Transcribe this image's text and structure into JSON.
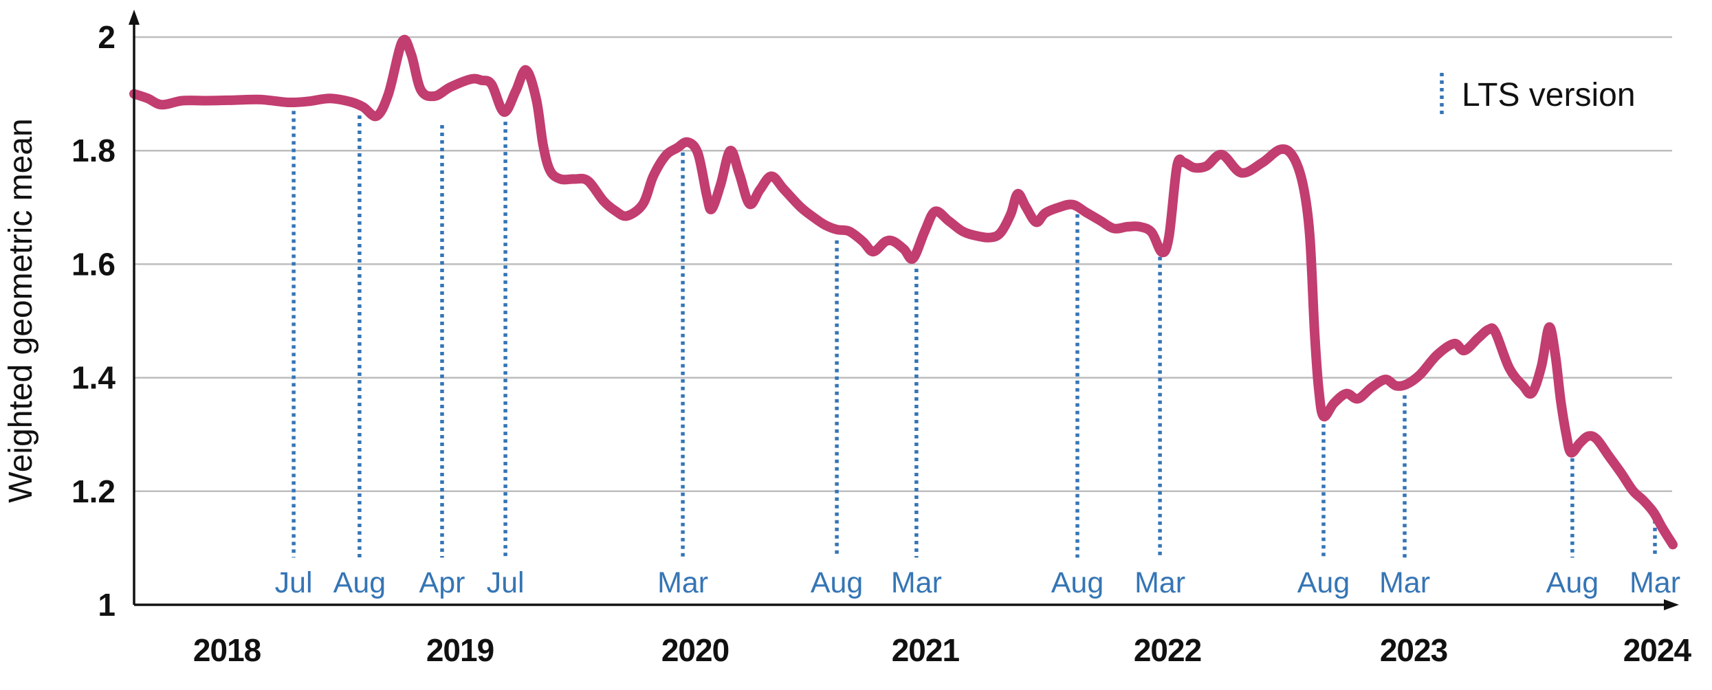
{
  "colors": {
    "series_line": "#c23d70",
    "lts_marker": "#3575b5",
    "gridline": "#bdbdbd",
    "axis": "#111111",
    "background": "#ffffff"
  },
  "chart_data": {
    "type": "line",
    "title": "",
    "xlabel": "",
    "ylabel": "Weighted geometric mean",
    "grid": "horizontal-only",
    "legend_position": "top-right",
    "y_axis": {
      "range": [
        1,
        2
      ],
      "ticks": [
        {
          "label": "1",
          "value": 1.0
        },
        {
          "label": "1.2",
          "value": 1.2
        },
        {
          "label": "1.4",
          "value": 1.4
        },
        {
          "label": "1.6",
          "value": 1.6
        },
        {
          "label": "1.8",
          "value": 1.8
        },
        {
          "label": "2",
          "value": 2.0
        }
      ],
      "gridline_values": [
        1.2,
        1.4,
        1.6,
        1.8,
        2.0
      ]
    },
    "x_axis": {
      "kind": "time",
      "year_ticks": [
        {
          "label": "2018",
          "f": 0.0603
        },
        {
          "label": "2019",
          "f": 0.2116
        },
        {
          "label": "2020",
          "f": 0.3643
        },
        {
          "label": "2021",
          "f": 0.5138
        },
        {
          "label": "2022",
          "f": 0.671
        },
        {
          "label": "2023",
          "f": 0.8308
        },
        {
          "label": "2024",
          "f": 0.9888
        }
      ]
    },
    "lts_markers": {
      "legend_label": "LTS version",
      "line_bottom_value": 1.083,
      "items": [
        {
          "label": "Jul",
          "f": 0.1036,
          "top_value": 1.87
        },
        {
          "label": "Aug",
          "f": 0.1464,
          "top_value": 1.862
        },
        {
          "label": "Apr",
          "f": 0.2,
          "top_value": 1.845
        },
        {
          "label": "Jul",
          "f": 0.2411,
          "top_value": 1.851
        },
        {
          "label": "Mar",
          "f": 0.3563,
          "top_value": 1.797
        },
        {
          "label": "Aug",
          "f": 0.4563,
          "top_value": 1.642
        },
        {
          "label": "Mar",
          "f": 0.508,
          "top_value": 1.592
        },
        {
          "label": "Aug",
          "f": 0.6125,
          "top_value": 1.688
        },
        {
          "label": "Mar",
          "f": 0.6661,
          "top_value": 1.613
        },
        {
          "label": "Aug",
          "f": 0.7723,
          "top_value": 1.318
        },
        {
          "label": "Mar",
          "f": 0.825,
          "top_value": 1.369
        },
        {
          "label": "Aug",
          "f": 0.9339,
          "top_value": 1.258
        },
        {
          "label": "Mar",
          "f": 0.9875,
          "top_value": 1.149
        }
      ]
    },
    "series": [
      {
        "name": "weighted-geometric-mean",
        "points": [
          [
            0.0,
            1.9
          ],
          [
            0.0089,
            1.892
          ],
          [
            0.0179,
            1.881
          ],
          [
            0.0313,
            1.888
          ],
          [
            0.0469,
            1.888
          ],
          [
            0.0647,
            1.889
          ],
          [
            0.0826,
            1.89
          ],
          [
            0.1004,
            1.885
          ],
          [
            0.1138,
            1.887
          ],
          [
            0.1272,
            1.892
          ],
          [
            0.1406,
            1.886
          ],
          [
            0.1487,
            1.877
          ],
          [
            0.1576,
            1.861
          ],
          [
            0.1652,
            1.9
          ],
          [
            0.1741,
            1.992
          ],
          [
            0.1799,
            1.97
          ],
          [
            0.1862,
            1.907
          ],
          [
            0.1951,
            1.896
          ],
          [
            0.2054,
            1.912
          ],
          [
            0.2188,
            1.926
          ],
          [
            0.2254,
            1.924
          ],
          [
            0.2321,
            1.917
          ],
          [
            0.2402,
            1.868
          ],
          [
            0.2478,
            1.905
          ],
          [
            0.2545,
            1.942
          ],
          [
            0.2612,
            1.89
          ],
          [
            0.2656,
            1.81
          ],
          [
            0.2701,
            1.765
          ],
          [
            0.2768,
            1.75
          ],
          [
            0.2857,
            1.75
          ],
          [
            0.2946,
            1.747
          ],
          [
            0.3049,
            1.711
          ],
          [
            0.3125,
            1.694
          ],
          [
            0.3201,
            1.685
          ],
          [
            0.3304,
            1.706
          ],
          [
            0.3371,
            1.755
          ],
          [
            0.3451,
            1.791
          ],
          [
            0.3527,
            1.805
          ],
          [
            0.3594,
            1.815
          ],
          [
            0.3661,
            1.795
          ],
          [
            0.3719,
            1.72
          ],
          [
            0.375,
            1.697
          ],
          [
            0.3808,
            1.74
          ],
          [
            0.3871,
            1.8
          ],
          [
            0.3929,
            1.76
          ],
          [
            0.3996,
            1.706
          ],
          [
            0.4063,
            1.731
          ],
          [
            0.4138,
            1.755
          ],
          [
            0.4219,
            1.732
          ],
          [
            0.433,
            1.7
          ],
          [
            0.442,
            1.681
          ],
          [
            0.4487,
            1.669
          ],
          [
            0.4563,
            1.661
          ],
          [
            0.4643,
            1.658
          ],
          [
            0.4732,
            1.64
          ],
          [
            0.4799,
            1.622
          ],
          [
            0.4879,
            1.64
          ],
          [
            0.4933,
            1.64
          ],
          [
            0.5,
            1.626
          ],
          [
            0.5058,
            1.61
          ],
          [
            0.5134,
            1.658
          ],
          [
            0.5201,
            1.693
          ],
          [
            0.529,
            1.676
          ],
          [
            0.5379,
            1.658
          ],
          [
            0.5469,
            1.65
          ],
          [
            0.5558,
            1.647
          ],
          [
            0.5625,
            1.655
          ],
          [
            0.5692,
            1.688
          ],
          [
            0.5737,
            1.724
          ],
          [
            0.579,
            1.701
          ],
          [
            0.5857,
            1.674
          ],
          [
            0.5915,
            1.69
          ],
          [
            0.6004,
            1.7
          ],
          [
            0.6094,
            1.705
          ],
          [
            0.6183,
            1.691
          ],
          [
            0.6272,
            1.677
          ],
          [
            0.6362,
            1.663
          ],
          [
            0.6451,
            1.666
          ],
          [
            0.6531,
            1.666
          ],
          [
            0.6607,
            1.656
          ],
          [
            0.6674,
            1.621
          ],
          [
            0.6719,
            1.648
          ],
          [
            0.6772,
            1.773
          ],
          [
            0.6817,
            1.779
          ],
          [
            0.6884,
            1.77
          ],
          [
            0.6964,
            1.773
          ],
          [
            0.7063,
            1.793
          ],
          [
            0.7188,
            1.761
          ],
          [
            0.7321,
            1.778
          ],
          [
            0.7442,
            1.802
          ],
          [
            0.7522,
            1.791
          ],
          [
            0.7589,
            1.741
          ],
          [
            0.7634,
            1.65
          ],
          [
            0.7665,
            1.48
          ],
          [
            0.7692,
            1.38
          ],
          [
            0.7723,
            1.332
          ],
          [
            0.779,
            1.355
          ],
          [
            0.7871,
            1.372
          ],
          [
            0.7946,
            1.363
          ],
          [
            0.8036,
            1.383
          ],
          [
            0.8125,
            1.397
          ],
          [
            0.8192,
            1.386
          ],
          [
            0.8259,
            1.388
          ],
          [
            0.8348,
            1.405
          ],
          [
            0.846,
            1.44
          ],
          [
            0.8571,
            1.46
          ],
          [
            0.8638,
            1.448
          ],
          [
            0.8728,
            1.47
          ],
          [
            0.8795,
            1.485
          ],
          [
            0.8839,
            1.48
          ],
          [
            0.8929,
            1.417
          ],
          [
            0.9018,
            1.386
          ],
          [
            0.9076,
            1.373
          ],
          [
            0.9138,
            1.42
          ],
          [
            0.9188,
            1.489
          ],
          [
            0.9228,
            1.44
          ],
          [
            0.9263,
            1.36
          ],
          [
            0.9299,
            1.3
          ],
          [
            0.933,
            1.268
          ],
          [
            0.9388,
            1.285
          ],
          [
            0.9442,
            1.297
          ],
          [
            0.9496,
            1.292
          ],
          [
            0.9576,
            1.262
          ],
          [
            0.9656,
            1.232
          ],
          [
            0.9732,
            1.201
          ],
          [
            0.9799,
            1.184
          ],
          [
            0.9866,
            1.163
          ],
          [
            0.9924,
            1.135
          ],
          [
            0.9991,
            1.106
          ]
        ]
      }
    ]
  }
}
